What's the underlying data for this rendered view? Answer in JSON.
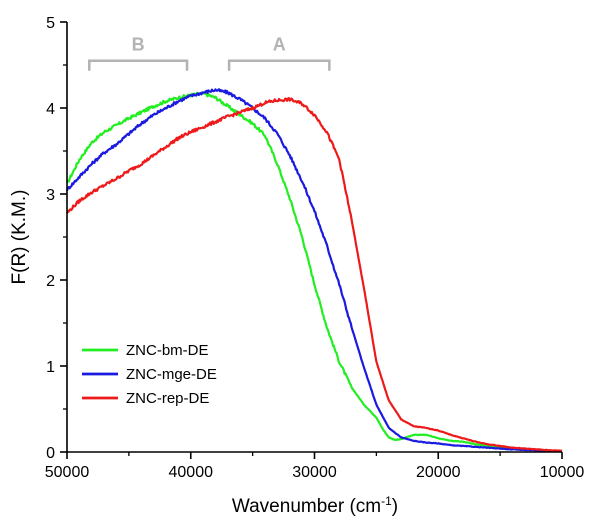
{
  "chart_data": {
    "type": "line",
    "xlabel": "Wavenumber (cm",
    "xlabel_sup": "-1",
    "xlabel_close": ")",
    "ylabel": "F(R) (K.M.)",
    "xlim": [
      50000,
      10000
    ],
    "ylim": [
      0,
      5
    ],
    "x_reversed": true,
    "x_ticks": [
      50000,
      40000,
      30000,
      20000,
      10000
    ],
    "x_tick_labels": [
      "50000",
      "40000",
      "30000",
      "20000",
      "10000"
    ],
    "y_ticks": [
      0,
      1,
      2,
      3,
      4,
      5
    ],
    "y_tick_labels": [
      "0",
      "1",
      "2",
      "3",
      "4",
      "5"
    ],
    "legend_position": "bottom-left",
    "annotations": [
      {
        "label": "B",
        "x_range": [
          48200,
          40300
        ],
        "y": 4.55,
        "color": "#b3b3b3"
      },
      {
        "label": "A",
        "x_range": [
          36900,
          28800
        ],
        "y": 4.55,
        "color": "#b3b3b3"
      }
    ],
    "series": [
      {
        "name": "ZNC-bm-DE",
        "color": "#22ee22",
        "points": [
          [
            50000,
            3.12
          ],
          [
            49000,
            3.4
          ],
          [
            48000,
            3.6
          ],
          [
            47000,
            3.72
          ],
          [
            46000,
            3.8
          ],
          [
            45000,
            3.88
          ],
          [
            44000,
            3.95
          ],
          [
            43000,
            4.02
          ],
          [
            42000,
            4.08
          ],
          [
            41000,
            4.12
          ],
          [
            40000,
            4.15
          ],
          [
            39000,
            4.17
          ],
          [
            38000,
            4.12
          ],
          [
            37000,
            4.02
          ],
          [
            36000,
            3.92
          ],
          [
            35000,
            3.82
          ],
          [
            34000,
            3.68
          ],
          [
            33000,
            3.35
          ],
          [
            32000,
            2.95
          ],
          [
            31000,
            2.5
          ],
          [
            30000,
            1.95
          ],
          [
            29000,
            1.45
          ],
          [
            28000,
            1.05
          ],
          [
            27000,
            0.75
          ],
          [
            26000,
            0.55
          ],
          [
            25000,
            0.4
          ],
          [
            24500,
            0.27
          ],
          [
            24000,
            0.17
          ],
          [
            23500,
            0.14
          ],
          [
            23000,
            0.15
          ],
          [
            22000,
            0.2
          ],
          [
            21000,
            0.2
          ],
          [
            20000,
            0.16
          ],
          [
            19000,
            0.13
          ],
          [
            18000,
            0.12
          ],
          [
            17000,
            0.09
          ],
          [
            16000,
            0.07
          ],
          [
            15000,
            0.05
          ],
          [
            14000,
            0.04
          ],
          [
            13000,
            0.03
          ],
          [
            12000,
            0.02
          ],
          [
            11000,
            0.015
          ],
          [
            10000,
            0.01
          ]
        ]
      },
      {
        "name": "ZNC-mge-DE",
        "color": "#1a1ae0",
        "points": [
          [
            50000,
            3.05
          ],
          [
            49000,
            3.2
          ],
          [
            48000,
            3.35
          ],
          [
            47000,
            3.48
          ],
          [
            46000,
            3.58
          ],
          [
            45000,
            3.7
          ],
          [
            44000,
            3.82
          ],
          [
            43000,
            3.92
          ],
          [
            42000,
            4.0
          ],
          [
            41000,
            4.08
          ],
          [
            40000,
            4.14
          ],
          [
            39000,
            4.18
          ],
          [
            38000,
            4.21
          ],
          [
            37000,
            4.18
          ],
          [
            36000,
            4.1
          ],
          [
            35000,
            4.0
          ],
          [
            34000,
            3.88
          ],
          [
            33000,
            3.7
          ],
          [
            32000,
            3.45
          ],
          [
            31000,
            3.15
          ],
          [
            30000,
            2.8
          ],
          [
            29000,
            2.4
          ],
          [
            28000,
            1.95
          ],
          [
            27000,
            1.45
          ],
          [
            26000,
            0.98
          ],
          [
            25000,
            0.55
          ],
          [
            24000,
            0.28
          ],
          [
            23000,
            0.17
          ],
          [
            22000,
            0.13
          ],
          [
            21000,
            0.11
          ],
          [
            20000,
            0.1
          ],
          [
            19000,
            0.08
          ],
          [
            18000,
            0.07
          ],
          [
            17000,
            0.06
          ],
          [
            16000,
            0.05
          ],
          [
            15000,
            0.04
          ],
          [
            14000,
            0.03
          ],
          [
            13000,
            0.025
          ],
          [
            12000,
            0.02
          ],
          [
            11000,
            0.015
          ],
          [
            10000,
            0.01
          ]
        ]
      },
      {
        "name": "ZNC-rep-DE",
        "color": "#ee1a1a",
        "points": [
          [
            50000,
            2.78
          ],
          [
            49000,
            2.92
          ],
          [
            48000,
            3.02
          ],
          [
            47000,
            3.1
          ],
          [
            46000,
            3.18
          ],
          [
            45000,
            3.27
          ],
          [
            44000,
            3.35
          ],
          [
            43000,
            3.45
          ],
          [
            42000,
            3.55
          ],
          [
            41000,
            3.65
          ],
          [
            40000,
            3.72
          ],
          [
            39000,
            3.78
          ],
          [
            38000,
            3.84
          ],
          [
            37000,
            3.9
          ],
          [
            36000,
            3.95
          ],
          [
            35000,
            4.0
          ],
          [
            34000,
            4.06
          ],
          [
            33000,
            4.09
          ],
          [
            32000,
            4.1
          ],
          [
            31000,
            4.05
          ],
          [
            30000,
            3.92
          ],
          [
            29000,
            3.72
          ],
          [
            28000,
            3.4
          ],
          [
            27000,
            2.7
          ],
          [
            26000,
            1.9
          ],
          [
            25000,
            1.05
          ],
          [
            24000,
            0.6
          ],
          [
            23000,
            0.38
          ],
          [
            22000,
            0.3
          ],
          [
            21000,
            0.28
          ],
          [
            20000,
            0.25
          ],
          [
            19000,
            0.2
          ],
          [
            18000,
            0.16
          ],
          [
            17000,
            0.12
          ],
          [
            16000,
            0.09
          ],
          [
            15000,
            0.07
          ],
          [
            14000,
            0.05
          ],
          [
            13000,
            0.04
          ],
          [
            12000,
            0.03
          ],
          [
            11000,
            0.02
          ],
          [
            10000,
            0.015
          ]
        ]
      }
    ]
  }
}
